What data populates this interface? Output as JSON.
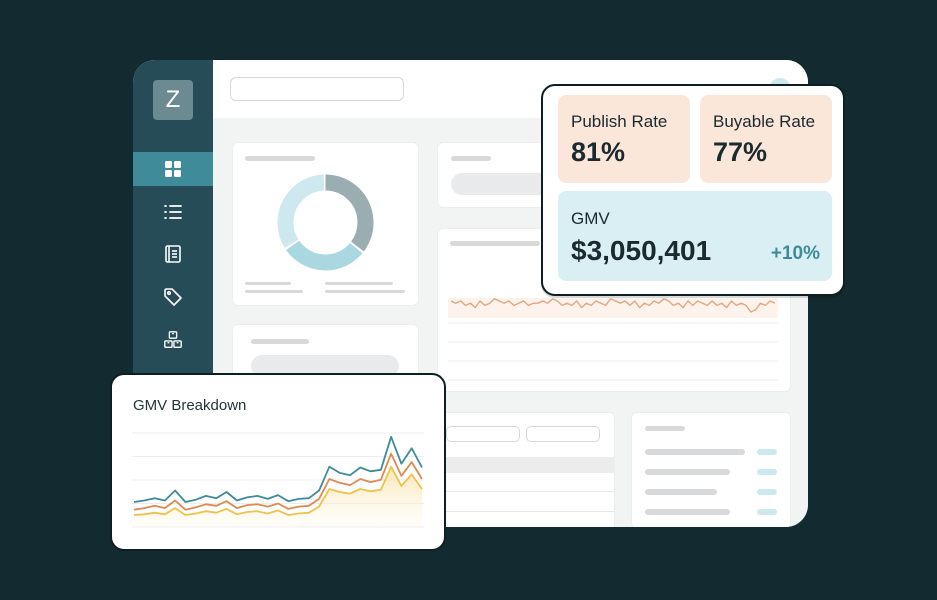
{
  "sidebar": {
    "logo_letter": "Z",
    "items": [
      {
        "icon": "dashboard-grid-icon",
        "active": true
      },
      {
        "icon": "list-icon",
        "active": false
      },
      {
        "icon": "book-icon",
        "active": false
      },
      {
        "icon": "tag-icon",
        "active": false
      },
      {
        "icon": "boxes-icon",
        "active": false
      }
    ]
  },
  "kpis": {
    "publish_rate": {
      "label": "Publish Rate",
      "value": "81%"
    },
    "buyable_rate": {
      "label": "Buyable Rate",
      "value": "77%"
    },
    "gmv": {
      "label": "GMV",
      "value": "$3,050,401",
      "delta": "+10%"
    }
  },
  "colors": {
    "background": "#132b30",
    "sidebar": "#254c57",
    "accent": "#3f8b99",
    "kpi_peach": "#fbe6da",
    "kpi_blue": "#d9eff4"
  },
  "donut": {
    "segments": [
      {
        "fraction": 0.36,
        "color": "#9aadb1"
      },
      {
        "fraction": 0.3,
        "color": "#a9d8e0"
      },
      {
        "fraction": 0.34,
        "color": "#cde9ef"
      }
    ]
  },
  "breakdown": {
    "title": "GMV Breakdown",
    "chart_data": {
      "type": "line",
      "series": [
        {
          "values": [
            3,
            3.2,
            3.5,
            3.2,
            4.5,
            3,
            3.3,
            3.8,
            3.5,
            4.3,
            3.2,
            3.6,
            3.8,
            3.4,
            3.9,
            3.1,
            3.4,
            3.5,
            4.5,
            7.6,
            6.8,
            6.5,
            7.5,
            7,
            7.2,
            11.5,
            8,
            10,
            7.5
          ],
          "color": "#3f8b99"
        },
        {
          "values": [
            2,
            2.2,
            2.5,
            2.2,
            3.2,
            2,
            2.3,
            2.7,
            2.5,
            3.1,
            2.2,
            2.6,
            2.7,
            2.4,
            2.8,
            2.1,
            2.4,
            2.5,
            3.4,
            6,
            5.5,
            5.2,
            6,
            5.6,
            5.9,
            9.3,
            6.4,
            8.2,
            6
          ],
          "color": "#e0894f"
        },
        {
          "values": [
            1.3,
            1.4,
            1.6,
            1.4,
            2.2,
            1.3,
            1.5,
            1.8,
            1.6,
            2.1,
            1.4,
            1.7,
            1.8,
            1.5,
            1.9,
            1.3,
            1.5,
            1.6,
            2.4,
            4.7,
            4.3,
            4.1,
            4.7,
            4.4,
            4.6,
            7.6,
            5.1,
            6.6,
            4.7
          ],
          "color": "#efc24b"
        }
      ]
    }
  },
  "trend": {
    "chart_data": {
      "type": "line",
      "series": [
        {
          "values": [
            5,
            4,
            5,
            3,
            4,
            2,
            5,
            3,
            4,
            6,
            5,
            4,
            5,
            3,
            4,
            5,
            3,
            4,
            4,
            5,
            4,
            6,
            5,
            3,
            4,
            3,
            5,
            2,
            4,
            3,
            5,
            4,
            3,
            6,
            5,
            4,
            5,
            3,
            5,
            2,
            4,
            3,
            5,
            4,
            6,
            5,
            3,
            4,
            2,
            5,
            3,
            5,
            4,
            3,
            5,
            3,
            4,
            2,
            5,
            3,
            4,
            3,
            0,
            1,
            4,
            3,
            5,
            4
          ],
          "color": "#e0a880"
        }
      ]
    }
  }
}
